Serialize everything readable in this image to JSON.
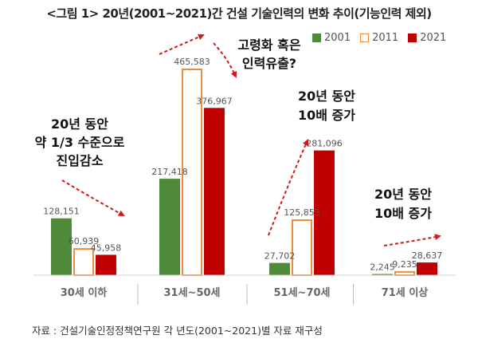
{
  "title": "<그림 1> 20년(2001~2021)간 건설 기술인력의 변화 추이(기능인력 제외)",
  "source": "자료 : 건설기술인정정책연구원 각 년도(2001~2021)별 자료 재구성",
  "chart_data": {
    "type": "bar",
    "categories": [
      "30세 이하",
      "31세~50세",
      "51세~70세",
      "71세 이상"
    ],
    "series": [
      {
        "name": "2001",
        "values": [
          128151,
          217418,
          27702,
          2245
        ],
        "color": "#4e8a3a",
        "style": "filled"
      },
      {
        "name": "2011",
        "values": [
          60939,
          465583,
          125853,
          9235
        ],
        "color": "#ee8c3a",
        "style": "outline"
      },
      {
        "name": "2021",
        "values": [
          45958,
          376967,
          281096,
          28637
        ],
        "color": "#c00000",
        "style": "filled"
      }
    ],
    "value_labels": [
      [
        "128,151",
        "217,418",
        "27,702",
        "2,245"
      ],
      [
        "60,939",
        "465,583",
        "125,853",
        "9,235"
      ],
      [
        "45,958",
        "376,967",
        "281,096",
        "28,637"
      ]
    ],
    "ylim": [
      0,
      465583
    ],
    "legend": "top-right",
    "annotations": [
      {
        "id": "youth",
        "lines": [
          "20년 동안",
          "약 1/3 수준으로",
          "진입감소"
        ]
      },
      {
        "id": "aging",
        "lines": [
          "고령화 혹은",
          "인력유출?"
        ]
      },
      {
        "id": "mid",
        "lines": [
          "20년 동안",
          "10배 증가"
        ]
      },
      {
        "id": "old",
        "lines": [
          "20년 동안",
          "10배 증가"
        ]
      }
    ]
  }
}
